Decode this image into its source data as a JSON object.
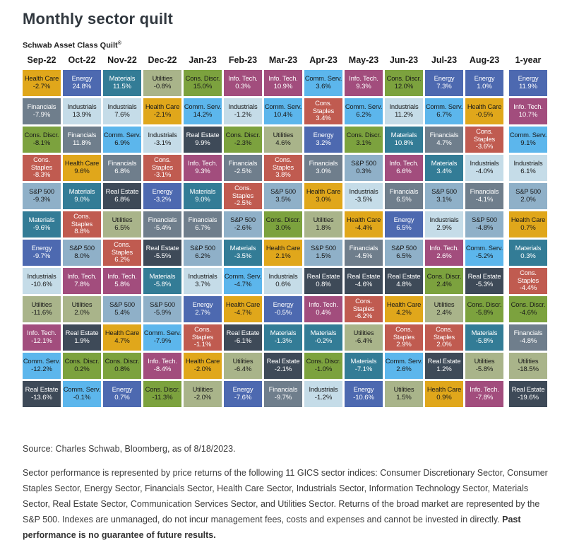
{
  "page": {
    "title": "Monthly sector quilt",
    "subtitle": "Schwab Asset Class Quilt",
    "subtitle_mark": "®"
  },
  "footer": {
    "source": "Source: Charles Schwab, Bloomberg, as of 8/18/2023.",
    "disclosure": "Sector performance is represented by price returns of the following 11 GICS sector indices: Consumer Discretionary Sector, Consumer Staples Sector, Energy Sector, Financials Sector, Health Care Sector, Industrials Sector, Information Technology Sector, Materials Sector, Real Estate Sector, Communication Services Sector, and Utilities Sector. Returns of the broad market are represented by the S&P 500. Indexes are unmanaged, do not incur management fees, costs and expenses and cannot be invested in directly. ",
    "disclosure_bold": "Past performance is no guarantee of future results."
  },
  "chart_data": {
    "type": "heatmap",
    "title": "Monthly sector quilt",
    "subtitle": "Schwab Asset Class Quilt®",
    "columns": [
      "Sep-22",
      "Oct-22",
      "Nov-22",
      "Dec-22",
      "Jan-23",
      "Feb-23",
      "Mar-23",
      "Apr-23",
      "May-23",
      "Jun-23",
      "Jul-23",
      "Aug-23",
      "1-year"
    ],
    "text_colors": {
      "dark": "#1a1a1a",
      "light": "#ffffff"
    },
    "sector_styles": {
      "Health Care": {
        "bg": "#E0A71B",
        "fg": "dark"
      },
      "Energy": {
        "bg": "#4D69B0",
        "fg": "light"
      },
      "Materials": {
        "bg": "#337C96",
        "fg": "light"
      },
      "Utilities": {
        "bg": "#A9B48A",
        "fg": "dark"
      },
      "Cons. Discr.": {
        "bg": "#7CA23E",
        "fg": "dark"
      },
      "Info. Tech.": {
        "bg": "#A24D7D",
        "fg": "light"
      },
      "Comm. Serv.": {
        "bg": "#5CB6EC",
        "fg": "dark"
      },
      "Financials": {
        "bg": "#6F7E8C",
        "fg": "light"
      },
      "Industrials": {
        "bg": "#C5DCE8",
        "fg": "dark"
      },
      "Cons. Staples": {
        "bg": "#C05B50",
        "fg": "light"
      },
      "S&P 500": {
        "bg": "#8FB0C8",
        "fg": "dark"
      },
      "Real Estate": {
        "bg": "#3E4A58",
        "fg": "light"
      }
    },
    "grid": [
      {
        "column": "Sep-22",
        "cells": [
          {
            "sector": "Health Care",
            "value": "-2.7%"
          },
          {
            "sector": "Financials",
            "value": "-7.9%"
          },
          {
            "sector": "Cons. Discr.",
            "value": "-8.1%"
          },
          {
            "sector": "Cons. Staples",
            "value": "-8.3%"
          },
          {
            "sector": "S&P 500",
            "value": "-9.3%"
          },
          {
            "sector": "Materials",
            "value": "-9.6%"
          },
          {
            "sector": "Energy",
            "value": "-9.7%"
          },
          {
            "sector": "Industrials",
            "value": "-10.6%"
          },
          {
            "sector": "Utilities",
            "value": "-11.6%"
          },
          {
            "sector": "Info. Tech.",
            "value": "-12.1%"
          },
          {
            "sector": "Comm. Serv.",
            "value": "-12.2%"
          },
          {
            "sector": "Real Estate",
            "value": "-13.6%"
          }
        ]
      },
      {
        "column": "Oct-22",
        "cells": [
          {
            "sector": "Energy",
            "value": "24.8%"
          },
          {
            "sector": "Industrials",
            "value": "13.9%"
          },
          {
            "sector": "Financials",
            "value": "11.8%"
          },
          {
            "sector": "Health Care",
            "value": "9.6%"
          },
          {
            "sector": "Materials",
            "value": "9.0%"
          },
          {
            "sector": "Cons. Staples",
            "value": "8.8%"
          },
          {
            "sector": "S&P 500",
            "value": "8.0%"
          },
          {
            "sector": "Info. Tech.",
            "value": "7.8%"
          },
          {
            "sector": "Utilities",
            "value": "2.0%"
          },
          {
            "sector": "Real Estate",
            "value": "1.9%"
          },
          {
            "sector": "Cons. Discr.",
            "value": "0.2%"
          },
          {
            "sector": "Comm. Serv.",
            "value": "-0.1%"
          }
        ]
      },
      {
        "column": "Nov-22",
        "cells": [
          {
            "sector": "Materials",
            "value": "11.5%"
          },
          {
            "sector": "Industrials",
            "value": "7.6%"
          },
          {
            "sector": "Comm. Serv.",
            "value": "6.9%"
          },
          {
            "sector": "Financials",
            "value": "6.8%"
          },
          {
            "sector": "Real Estate",
            "value": "6.8%"
          },
          {
            "sector": "Utilities",
            "value": "6.5%"
          },
          {
            "sector": "Cons. Staples",
            "value": "6.2%"
          },
          {
            "sector": "Info. Tech.",
            "value": "5.8%"
          },
          {
            "sector": "S&P 500",
            "value": "5.4%"
          },
          {
            "sector": "Health Care",
            "value": "4.7%"
          },
          {
            "sector": "Cons. Discr.",
            "value": "0.8%"
          },
          {
            "sector": "Energy",
            "value": "0.7%"
          }
        ]
      },
      {
        "column": "Dec-22",
        "cells": [
          {
            "sector": "Utilities",
            "value": "-0.8%"
          },
          {
            "sector": "Health Care",
            "value": "-2.1%"
          },
          {
            "sector": "Industrials",
            "value": "-3.1%"
          },
          {
            "sector": "Cons. Staples",
            "value": "-3.1%"
          },
          {
            "sector": "Energy",
            "value": "-3.2%"
          },
          {
            "sector": "Financials",
            "value": "-5.4%"
          },
          {
            "sector": "Real Estate",
            "value": "-5.5%"
          },
          {
            "sector": "Materials",
            "value": "-5.8%"
          },
          {
            "sector": "S&P 500",
            "value": "-5.9%"
          },
          {
            "sector": "Comm. Serv.",
            "value": "-7.9%"
          },
          {
            "sector": "Info. Tech.",
            "value": "-8.4%"
          },
          {
            "sector": "Cons. Discr.",
            "value": "-11.3%"
          }
        ]
      },
      {
        "column": "Jan-23",
        "cells": [
          {
            "sector": "Cons. Discr.",
            "value": "15.0%"
          },
          {
            "sector": "Comm. Serv.",
            "value": "14.2%"
          },
          {
            "sector": "Real Estate",
            "value": "9.9%"
          },
          {
            "sector": "Info. Tech.",
            "value": "9.3%"
          },
          {
            "sector": "Materials",
            "value": "9.0%"
          },
          {
            "sector": "Financials",
            "value": "6.7%"
          },
          {
            "sector": "S&P 500",
            "value": "6.2%"
          },
          {
            "sector": "Industrials",
            "value": "3.7%"
          },
          {
            "sector": "Energy",
            "value": "2.7%"
          },
          {
            "sector": "Cons. Staples",
            "value": "-1.1%"
          },
          {
            "sector": "Health Care",
            "value": "-2.0%"
          },
          {
            "sector": "Utilities",
            "value": "-2.0%"
          }
        ]
      },
      {
        "column": "Feb-23",
        "cells": [
          {
            "sector": "Info. Tech.",
            "value": "0.3%"
          },
          {
            "sector": "Industrials",
            "value": "-1.2%"
          },
          {
            "sector": "Cons. Discr.",
            "value": "-2.3%"
          },
          {
            "sector": "Financials",
            "value": "-2.5%"
          },
          {
            "sector": "Cons. Staples",
            "value": "-2.5%"
          },
          {
            "sector": "S&P 500",
            "value": "-2.6%"
          },
          {
            "sector": "Materials",
            "value": "-3.5%"
          },
          {
            "sector": "Comm. Serv.",
            "value": "-4.7%"
          },
          {
            "sector": "Health Care",
            "value": "-4.7%"
          },
          {
            "sector": "Real Estate",
            "value": "-6.1%"
          },
          {
            "sector": "Utilities",
            "value": "-6.4%"
          },
          {
            "sector": "Energy",
            "value": "-7.6%"
          }
        ]
      },
      {
        "column": "Mar-23",
        "cells": [
          {
            "sector": "Info. Tech.",
            "value": "10.9%"
          },
          {
            "sector": "Comm. Serv.",
            "value": "10.4%"
          },
          {
            "sector": "Utilities",
            "value": "4.6%"
          },
          {
            "sector": "Cons. Staples",
            "value": "3.8%"
          },
          {
            "sector": "S&P 500",
            "value": "3.5%"
          },
          {
            "sector": "Cons. Discr.",
            "value": "3.0%"
          },
          {
            "sector": "Health Care",
            "value": "2.1%"
          },
          {
            "sector": "Industrials",
            "value": "0.6%"
          },
          {
            "sector": "Energy",
            "value": "-0.5%"
          },
          {
            "sector": "Materials",
            "value": "-1.3%"
          },
          {
            "sector": "Real Estate",
            "value": "-2.1%"
          },
          {
            "sector": "Financials",
            "value": "-9.7%"
          }
        ]
      },
      {
        "column": "Apr-23",
        "cells": [
          {
            "sector": "Comm. Serv.",
            "value": "3.6%"
          },
          {
            "sector": "Cons. Staples",
            "value": "3.4%"
          },
          {
            "sector": "Energy",
            "value": "3.2%"
          },
          {
            "sector": "Financials",
            "value": "3.0%"
          },
          {
            "sector": "Health Care",
            "value": "3.0%"
          },
          {
            "sector": "Utilities",
            "value": "1.8%"
          },
          {
            "sector": "S&P 500",
            "value": "1.5%"
          },
          {
            "sector": "Real Estate",
            "value": "0.8%"
          },
          {
            "sector": "Info. Tech.",
            "value": "0.4%"
          },
          {
            "sector": "Materials",
            "value": "-0.2%"
          },
          {
            "sector": "Cons. Discr.",
            "value": "-1.0%"
          },
          {
            "sector": "Industrials",
            "value": "-1.2%"
          }
        ]
      },
      {
        "column": "May-23",
        "cells": [
          {
            "sector": "Info. Tech.",
            "value": "9.3%"
          },
          {
            "sector": "Comm. Serv.",
            "value": "6.2%"
          },
          {
            "sector": "Cons. Discr.",
            "value": "3.1%"
          },
          {
            "sector": "S&P 500",
            "value": "0.3%"
          },
          {
            "sector": "Industrials",
            "value": "-3.5%"
          },
          {
            "sector": "Health Care",
            "value": "-4.4%"
          },
          {
            "sector": "Financials",
            "value": "-4.5%"
          },
          {
            "sector": "Real Estate",
            "value": "-4.6%"
          },
          {
            "sector": "Cons. Staples",
            "value": "-6.2%"
          },
          {
            "sector": "Utilities",
            "value": "-6.4%"
          },
          {
            "sector": "Materials",
            "value": "-7.1%"
          },
          {
            "sector": "Energy",
            "value": "-10.6%"
          }
        ]
      },
      {
        "column": "Jun-23",
        "cells": [
          {
            "sector": "Cons. Discr.",
            "value": "12.0%"
          },
          {
            "sector": "Industrials",
            "value": "11.2%"
          },
          {
            "sector": "Materials",
            "value": "10.8%"
          },
          {
            "sector": "Info. Tech.",
            "value": "6.6%"
          },
          {
            "sector": "Financials",
            "value": "6.5%"
          },
          {
            "sector": "Energy",
            "value": "6.5%"
          },
          {
            "sector": "S&P 500",
            "value": "6.5%"
          },
          {
            "sector": "Real Estate",
            "value": "4.8%"
          },
          {
            "sector": "Health Care",
            "value": "4.2%"
          },
          {
            "sector": "Cons. Staples",
            "value": "2.9%"
          },
          {
            "sector": "Comm. Serv.",
            "value": "2.6%"
          },
          {
            "sector": "Utilities",
            "value": "1.5%"
          }
        ]
      },
      {
        "column": "Jul-23",
        "cells": [
          {
            "sector": "Energy",
            "value": "7.3%"
          },
          {
            "sector": "Comm. Serv.",
            "value": "6.7%"
          },
          {
            "sector": "Financials",
            "value": "4.7%"
          },
          {
            "sector": "Materials",
            "value": "3.4%"
          },
          {
            "sector": "S&P 500",
            "value": "3.1%"
          },
          {
            "sector": "Industrials",
            "value": "2.9%"
          },
          {
            "sector": "Info. Tech.",
            "value": "2.6%"
          },
          {
            "sector": "Cons. Discr.",
            "value": "2.4%"
          },
          {
            "sector": "Utilities",
            "value": "2.4%"
          },
          {
            "sector": "Cons. Staples",
            "value": "2.0%"
          },
          {
            "sector": "Real Estate",
            "value": "1.2%"
          },
          {
            "sector": "Health Care",
            "value": "0.9%"
          }
        ]
      },
      {
        "column": "Aug-23",
        "cells": [
          {
            "sector": "Energy",
            "value": "1.0%"
          },
          {
            "sector": "Health Care",
            "value": "-0.5%"
          },
          {
            "sector": "Cons. Staples",
            "value": "-3.6%"
          },
          {
            "sector": "Industrials",
            "value": "-4.0%"
          },
          {
            "sector": "Financials",
            "value": "-4.1%"
          },
          {
            "sector": "S&P 500",
            "value": "-4.8%"
          },
          {
            "sector": "Comm. Serv.",
            "value": "-5.2%"
          },
          {
            "sector": "Real Estate",
            "value": "-5.3%"
          },
          {
            "sector": "Cons. Discr.",
            "value": "-5.8%"
          },
          {
            "sector": "Materials",
            "value": "-5.8%"
          },
          {
            "sector": "Utilities",
            "value": "-5.8%"
          },
          {
            "sector": "Info. Tech.",
            "value": "-7.8%"
          }
        ]
      },
      {
        "column": "1-year",
        "cells": [
          {
            "sector": "Energy",
            "value": "11.9%"
          },
          {
            "sector": "Info. Tech.",
            "value": "10.7%"
          },
          {
            "sector": "Comm. Serv.",
            "value": "9.1%"
          },
          {
            "sector": "Industrials",
            "value": "6.1%"
          },
          {
            "sector": "S&P 500",
            "value": "2.0%"
          },
          {
            "sector": "Health Care",
            "value": "0.7%"
          },
          {
            "sector": "Materials",
            "value": "0.3%"
          },
          {
            "sector": "Cons. Staples",
            "value": "-4.4%"
          },
          {
            "sector": "Cons. Discr.",
            "value": "-4.6%"
          },
          {
            "sector": "Financials",
            "value": "-4.8%"
          },
          {
            "sector": "Utilities",
            "value": "-18.5%"
          },
          {
            "sector": "Real Estate",
            "value": "-19.6%"
          }
        ]
      }
    ]
  }
}
